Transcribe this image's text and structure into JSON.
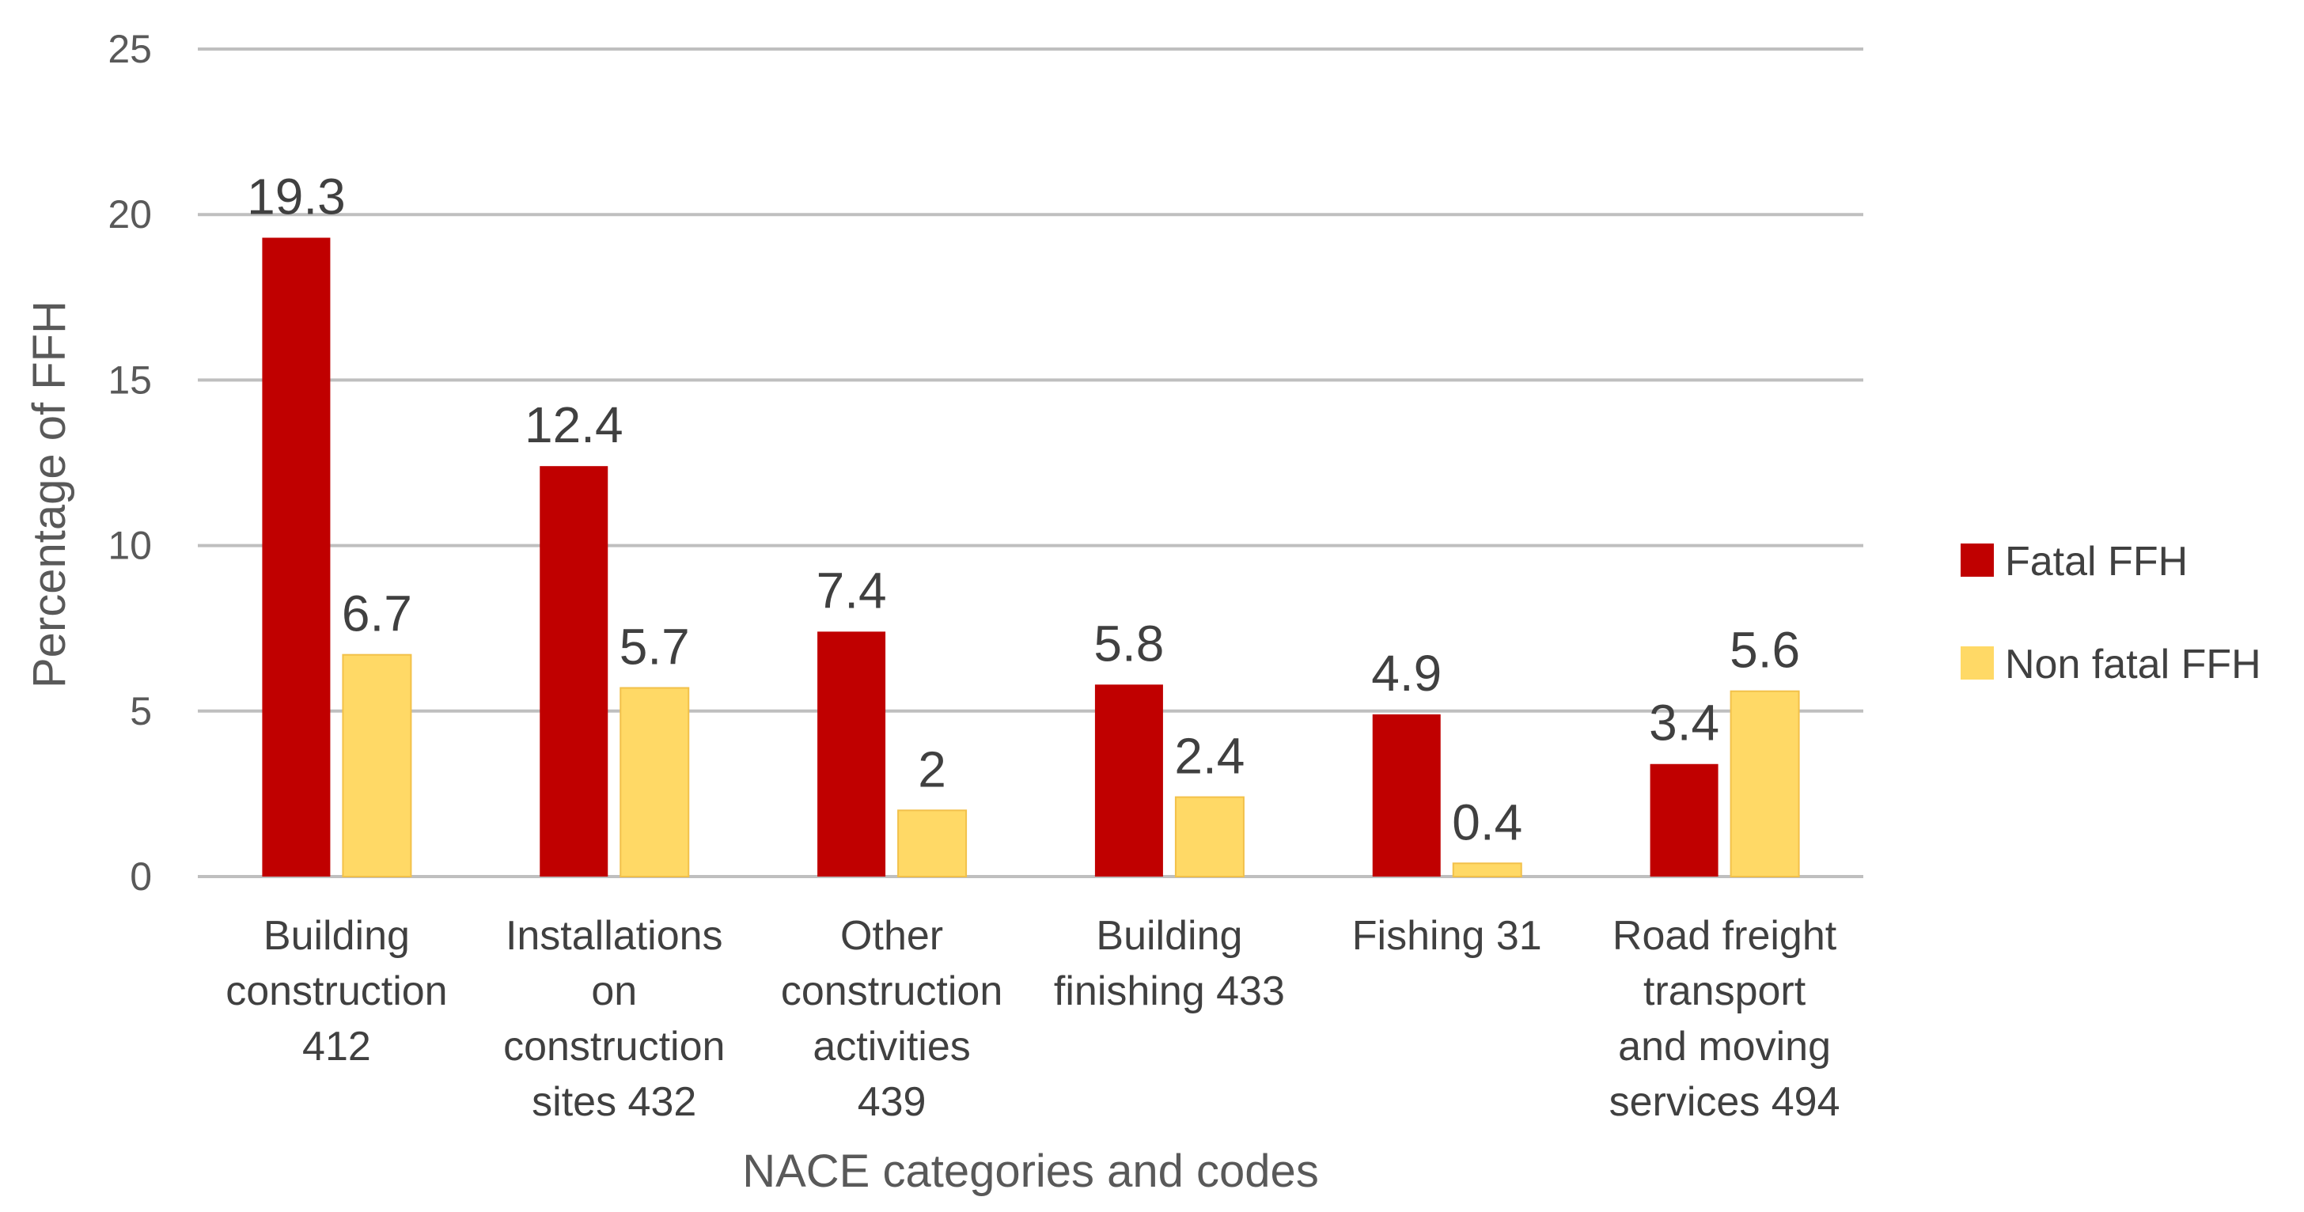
{
  "chart_data": {
    "type": "bar",
    "title": "",
    "xlabel": "NACE categories and codes",
    "ylabel": "Percentage of  FFH",
    "ylim": [
      0,
      25
    ],
    "yticks": [
      0,
      5,
      10,
      15,
      20,
      25
    ],
    "grid": true,
    "legend_position": "right",
    "categories": [
      [
        "Building",
        "construction",
        "412"
      ],
      [
        "Installations",
        "on",
        "construction",
        "sites 432"
      ],
      [
        "Other",
        "construction",
        "activities",
        "439"
      ],
      [
        "Building",
        "finishing 433"
      ],
      [
        "Fishing 31"
      ],
      [
        "Road freight",
        "transport",
        "and moving",
        "services 494"
      ]
    ],
    "series": [
      {
        "name": "Fatal FFH",
        "color": "#c00000",
        "values": [
          19.3,
          12.4,
          7.4,
          5.8,
          4.9,
          3.4
        ],
        "labels": [
          "19.3",
          "12.4",
          "7.4",
          "5.8",
          "4.9",
          "3.4"
        ]
      },
      {
        "name": "Non fatal FFH",
        "color": "#ffd966",
        "values": [
          6.7,
          5.7,
          2,
          2.4,
          0.4,
          5.6
        ],
        "labels": [
          "6.7",
          "5.7",
          "2",
          "2.4",
          "0.4",
          "5.6"
        ]
      }
    ]
  }
}
